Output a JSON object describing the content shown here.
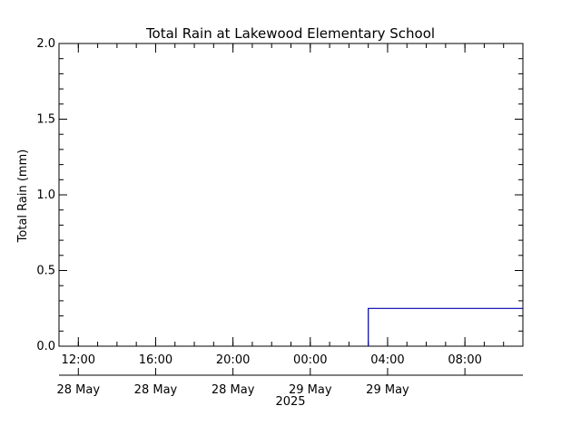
{
  "chart_data": {
    "type": "line",
    "title": "Total Rain at Lakewood Elementary School",
    "ylabel": "Total Rain (mm)",
    "xlabel": "",
    "ylim": [
      0.0,
      2.0
    ],
    "y_ticks": [
      "0.0",
      "0.5",
      "1.0",
      "1.5",
      "2.0"
    ],
    "xlim": [
      "2025-05-28 11:00",
      "2025-05-29 11:00"
    ],
    "x_ticks": [
      {
        "time": "2025-05-28 12:00",
        "label": "12:00",
        "date_label": "28 May"
      },
      {
        "time": "2025-05-28 16:00",
        "label": "16:00",
        "date_label": "28 May"
      },
      {
        "time": "2025-05-28 20:00",
        "label": "20:00",
        "date_label": "28 May"
      },
      {
        "time": "2025-05-29 00:00",
        "label": "00:00",
        "date_label": "29 May"
      },
      {
        "time": "2025-05-29 04:00",
        "label": "04:00",
        "date_label": "29 May"
      },
      {
        "time": "2025-05-29 08:00",
        "label": "08:00",
        "date_label": ""
      }
    ],
    "year_label": "2025",
    "grid": false,
    "series": [
      {
        "color": "#0000aa",
        "step": true,
        "points": [
          {
            "x": "2025-05-29 03:00",
            "y": 0.0
          },
          {
            "x": "2025-05-29 03:00",
            "y": 0.25
          },
          {
            "x": "2025-05-29 11:00",
            "y": 0.25
          }
        ]
      }
    ]
  }
}
